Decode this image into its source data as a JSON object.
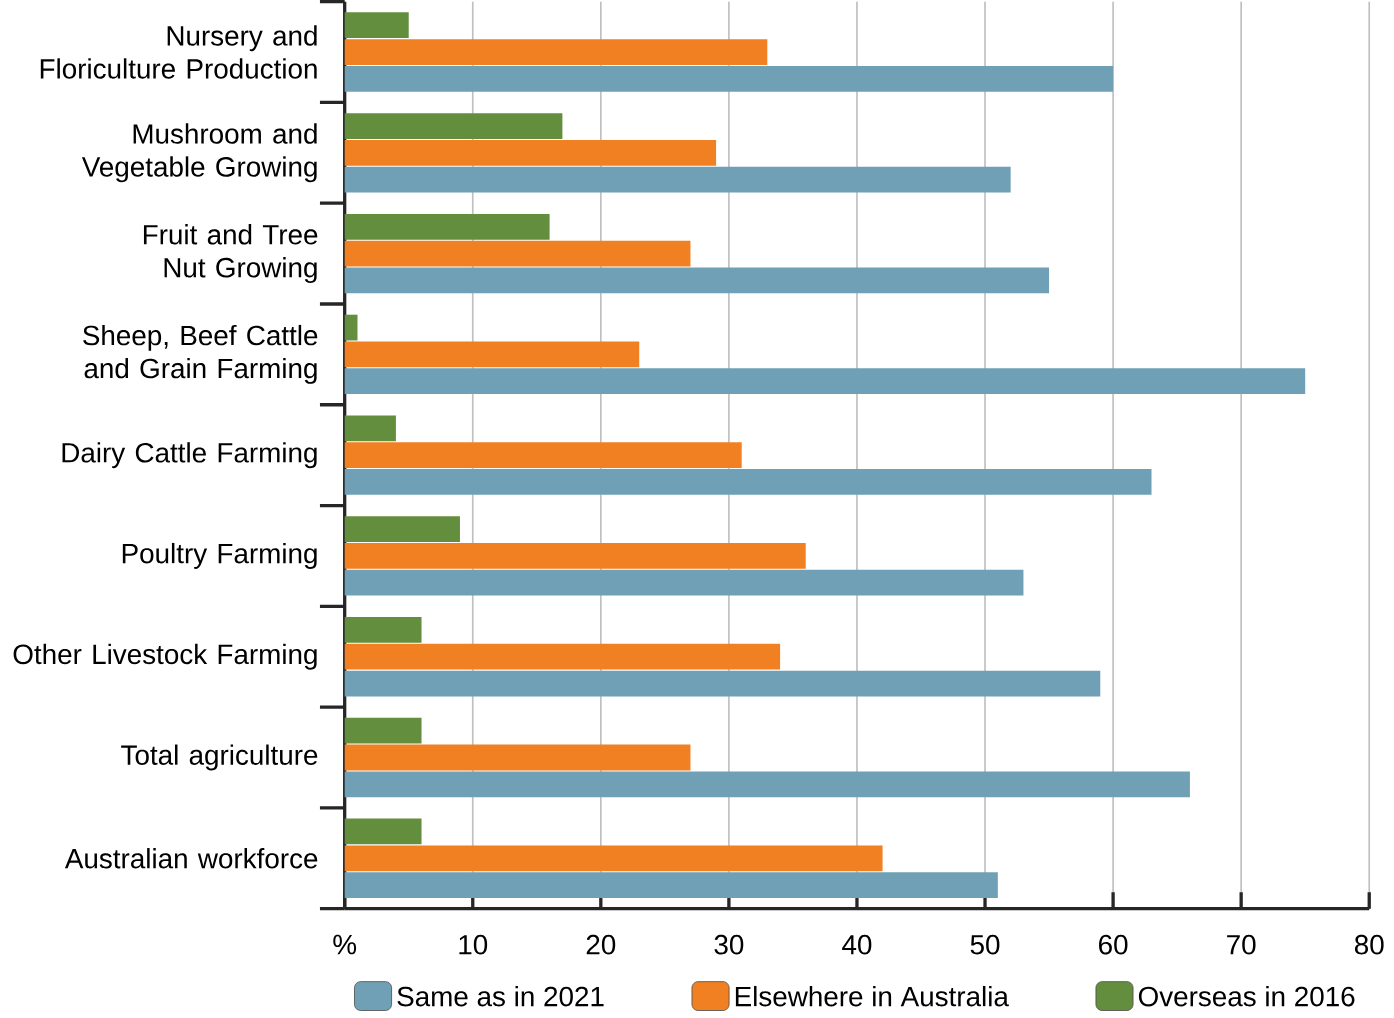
{
  "chart_data": {
    "type": "bar",
    "orientation": "horizontal",
    "categories": [
      "Nursery and Floriculture Production",
      "Mushroom and Vegetable Growing",
      "Fruit and Tree Nut Growing",
      "Sheep, Beef Cattle and Grain Farming",
      "Dairy Cattle Farming",
      "Poultry Farming",
      "Other Livestock Farming",
      "Total agriculture",
      "Australian workforce"
    ],
    "series": [
      {
        "name": "Same as in 2021",
        "color": "#6fa0b5",
        "values": [
          60,
          52,
          55,
          75,
          63,
          53,
          59,
          66,
          51
        ]
      },
      {
        "name": "Elsewhere in Australia",
        "color": "#f08022",
        "values": [
          33,
          29,
          27,
          23,
          31,
          36,
          34,
          27,
          42
        ]
      },
      {
        "name": "Overseas in 2016",
        "color": "#638e3e",
        "values": [
          5,
          17,
          16,
          1,
          4,
          9,
          6,
          6,
          6
        ]
      }
    ],
    "xlim": [
      0,
      80
    ],
    "xticks": [
      {
        "value": 0,
        "label": "%"
      },
      10,
      20,
      30,
      40,
      50,
      60,
      70,
      80
    ],
    "grid": "x",
    "legend": "bottom"
  }
}
